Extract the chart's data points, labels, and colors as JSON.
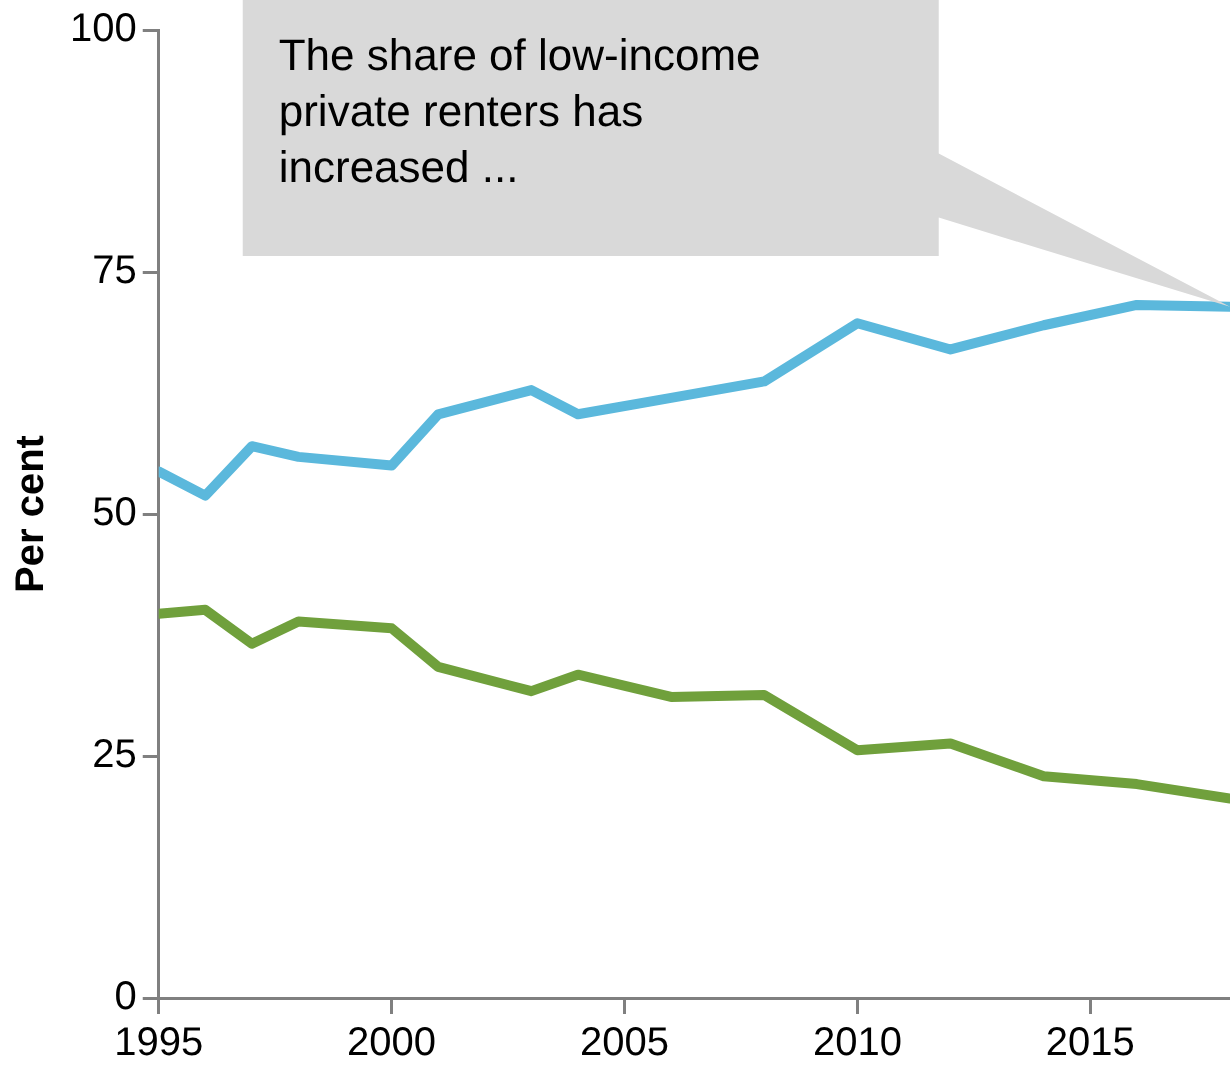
{
  "chart_data": {
    "type": "line",
    "ylabel": "Per cent",
    "xlim": [
      1995,
      2018
    ],
    "xticks": [
      1995,
      2000,
      2005,
      2010,
      2015
    ],
    "ylim": [
      0,
      100
    ],
    "yticks": [
      0,
      25,
      50,
      75,
      100
    ],
    "grid": false,
    "legend": false,
    "marker": "none",
    "line_style": "solid",
    "x": [
      1995,
      1996,
      1997,
      1998,
      2000,
      2001,
      2003,
      2004,
      2006,
      2008,
      2010,
      2012,
      2014,
      2016,
      2018
    ],
    "series": [
      {
        "color": "#5bb8dc",
        "values": [
          54.4,
          51.9,
          57,
          55.9,
          55,
          60.3,
          62.8,
          60.3,
          62,
          63.7,
          69.7,
          67,
          69.5,
          71.6,
          71.4
        ]
      },
      {
        "color": "#70a03c",
        "values": [
          39.7,
          40.1,
          36.6,
          38.9,
          38.2,
          34.2,
          31.7,
          33.4,
          31.1,
          31.3,
          25.6,
          26.3,
          22.9,
          22.1,
          20.6
        ]
      }
    ],
    "annotations": [
      "The share of low-income private renters has increased ..."
    ]
  }
}
